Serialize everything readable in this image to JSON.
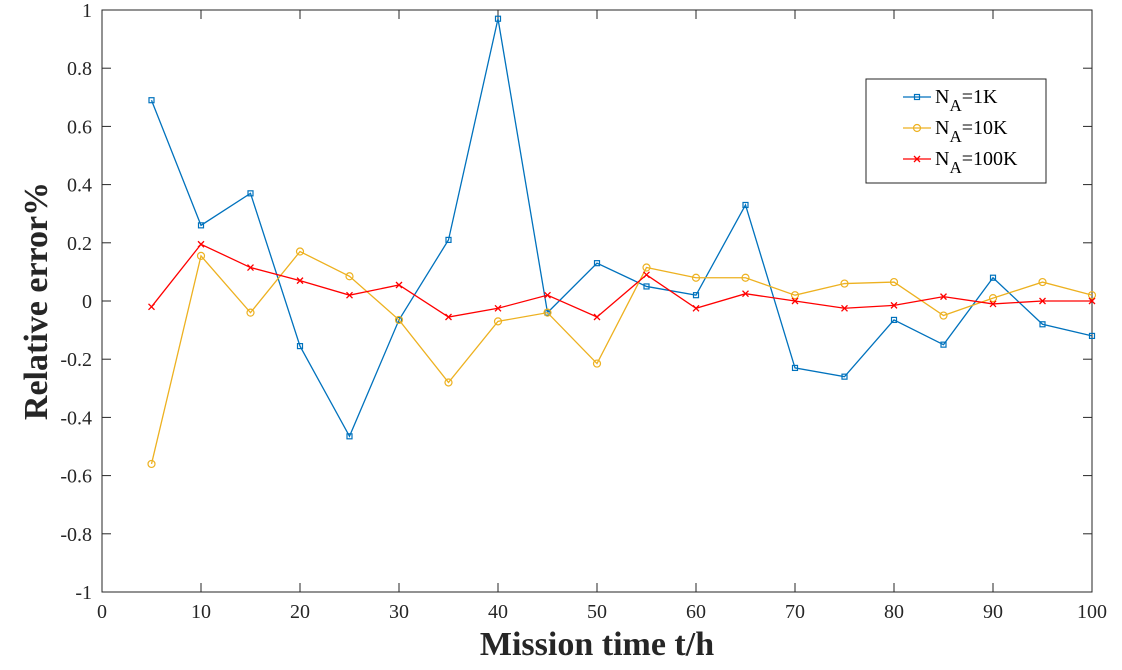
{
  "chart_data": {
    "type": "line",
    "xlabel": "Mission time t/h",
    "ylabel": "Relative error%",
    "xlim": [
      0,
      100
    ],
    "ylim": [
      -1,
      1
    ],
    "xticks": [
      0,
      10,
      20,
      30,
      40,
      50,
      60,
      70,
      80,
      90,
      100
    ],
    "yticks": [
      -1,
      -0.8,
      -0.6,
      -0.4,
      -0.2,
      0,
      0.2,
      0.4,
      0.6,
      0.8,
      1
    ],
    "xtick_labels": [
      "0",
      "10",
      "20",
      "30",
      "40",
      "50",
      "60",
      "70",
      "80",
      "90",
      "100"
    ],
    "ytick_labels": [
      "-1",
      "-0.8",
      "-0.6",
      "-0.4",
      "-0.2",
      "0",
      "0.2",
      "0.4",
      "0.6",
      "0.8",
      "1"
    ],
    "grid": false,
    "legend_position": "top-right",
    "x": [
      5,
      10,
      15,
      20,
      25,
      30,
      35,
      40,
      45,
      50,
      55,
      60,
      65,
      70,
      75,
      80,
      85,
      90,
      95,
      100
    ],
    "series": [
      {
        "name_main": "N",
        "name_sub": "A",
        "name_rest": "=1K",
        "color": "#0072BD",
        "marker": "square",
        "values": [
          0.69,
          0.26,
          0.37,
          -0.155,
          -0.465,
          -0.065,
          0.21,
          0.97,
          -0.04,
          0.13,
          0.05,
          0.02,
          0.33,
          -0.23,
          -0.26,
          -0.065,
          -0.15,
          0.08,
          -0.08,
          -0.12
        ]
      },
      {
        "name_main": "N",
        "name_sub": "A",
        "name_rest": "=10K",
        "color": "#EDB120",
        "marker": "circle",
        "values": [
          -0.56,
          0.155,
          -0.04,
          0.17,
          0.085,
          -0.065,
          -0.28,
          -0.07,
          -0.04,
          -0.215,
          0.115,
          0.08,
          0.08,
          0.02,
          0.06,
          0.065,
          -0.05,
          0.01,
          0.065,
          0.02
        ]
      },
      {
        "name_main": "N",
        "name_sub": "A",
        "name_rest": "=100K",
        "color": "#FF0000",
        "marker": "x",
        "values": [
          -0.02,
          0.195,
          0.115,
          0.07,
          0.02,
          0.055,
          -0.055,
          -0.025,
          0.02,
          -0.055,
          0.09,
          -0.025,
          0.025,
          0,
          -0.025,
          -0.015,
          0.015,
          -0.01,
          0,
          0
        ]
      }
    ]
  }
}
